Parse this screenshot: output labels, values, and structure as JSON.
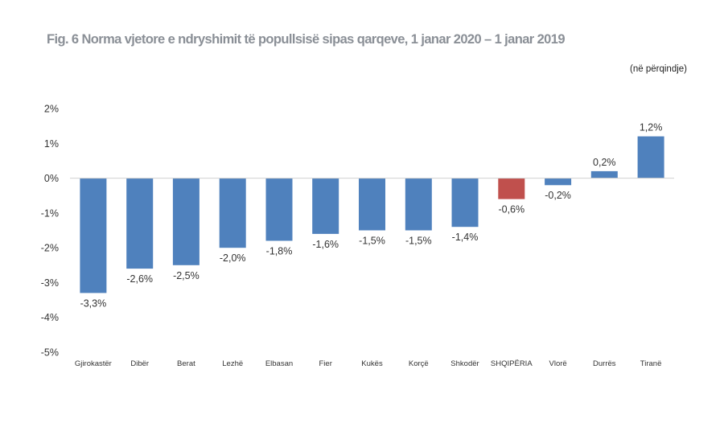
{
  "page": {
    "title": "Fig. 6 Norma vjetore e ndryshimit të popullsisë sipas qarqeve, 1 janar 2020 – 1 janar 2019",
    "unit_note": "(në përqindje)"
  },
  "chart_data": {
    "type": "bar",
    "title": "Fig. 6 Norma vjetore e ndryshimit të popullsisë sipas qarqeve, 1 janar 2020 – 1 janar 2019",
    "xlabel": "",
    "ylabel": "",
    "categories": [
      "Gjirokastër",
      "Dibër",
      "Berat",
      "Lezhë",
      "Elbasan",
      "Fier",
      "Kukës",
      "Korçë",
      "Shkodër",
      "SHQIPËRIA",
      "Vlorë",
      "Durrës",
      "Tiranë"
    ],
    "values": [
      -3.3,
      -2.6,
      -2.5,
      -2.0,
      -1.8,
      -1.6,
      -1.5,
      -1.5,
      -1.4,
      -0.6,
      -0.2,
      0.2,
      1.2
    ],
    "data_labels": [
      "-3,3%",
      "-2,6%",
      "-2,5%",
      "-2,0%",
      "-1,8%",
      "-1,6%",
      "-1,5%",
      "-1,5%",
      "-1,4%",
      "-0,6%",
      "-0,2%",
      "0,2%",
      "1,2%"
    ],
    "ylim": [
      -5,
      2
    ],
    "yticks": [
      2,
      1,
      0,
      -1,
      -2,
      -3,
      -4,
      -5
    ],
    "ytick_labels": [
      "2%",
      "1%",
      "0%",
      "-1%",
      "-2%",
      "-3%",
      "-4%",
      "-5%"
    ],
    "grid": false,
    "legend": "none",
    "colors": {
      "bar": "#4f81bd",
      "highlight": "#c0504d",
      "highlight_category": "SHQIPËRIA",
      "axis": "#d0d0d0"
    }
  }
}
